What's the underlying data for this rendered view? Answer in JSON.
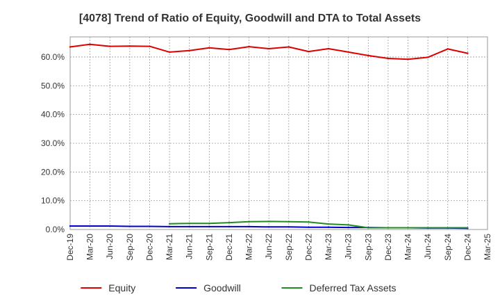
{
  "chart_data": {
    "type": "line",
    "title": "[4078]  Trend of Ratio of Equity, Goodwill and DTA to Total Assets",
    "xlabel": "",
    "ylabel": "",
    "ylim": [
      0,
      67
    ],
    "grid": true,
    "legend_position": "bottom",
    "y_ticks": [
      0,
      10,
      20,
      30,
      40,
      50,
      60
    ],
    "y_tick_labels": [
      "0.0%",
      "10.0%",
      "20.0%",
      "30.0%",
      "40.0%",
      "50.0%",
      "60.0%"
    ],
    "x_tick_labels": [
      "Dec-19",
      "Mar-20",
      "Jun-20",
      "Sep-20",
      "Dec-20",
      "Mar-21",
      "Jun-21",
      "Sep-21",
      "Dec-21",
      "Mar-22",
      "Jun-22",
      "Sep-22",
      "Dec-22",
      "Mar-23",
      "Jun-23",
      "Sep-23",
      "Dec-23",
      "Mar-24",
      "Jun-24",
      "Sep-24",
      "Dec-24",
      "Mar-25"
    ],
    "series": [
      {
        "name": "Equity",
        "color": "#dd0000",
        "values": [
          63.5,
          64.4,
          63.7,
          63.8,
          63.7,
          61.7,
          62.2,
          63.2,
          62.6,
          63.6,
          62.9,
          63.5,
          61.9,
          62.9,
          61.7,
          60.5,
          59.5,
          59.2,
          59.9,
          62.8,
          61.3,
          null
        ]
      },
      {
        "name": "Goodwill",
        "color": "#0000cc",
        "values": [
          1.2,
          1.2,
          1.2,
          1.1,
          1.1,
          1.0,
          1.0,
          1.0,
          1.0,
          1.0,
          0.9,
          0.9,
          0.8,
          0.8,
          0.7,
          0.7,
          0.6,
          0.6,
          0.5,
          0.5,
          0.4,
          null
        ]
      },
      {
        "name": "Deferred Tax Assets",
        "color": "#228b22",
        "values": [
          null,
          null,
          null,
          null,
          null,
          2.0,
          2.1,
          2.1,
          2.4,
          2.7,
          2.8,
          2.7,
          2.6,
          1.9,
          1.6,
          0.6,
          0.6,
          0.6,
          0.6,
          0.6,
          0.6,
          null
        ]
      }
    ]
  }
}
